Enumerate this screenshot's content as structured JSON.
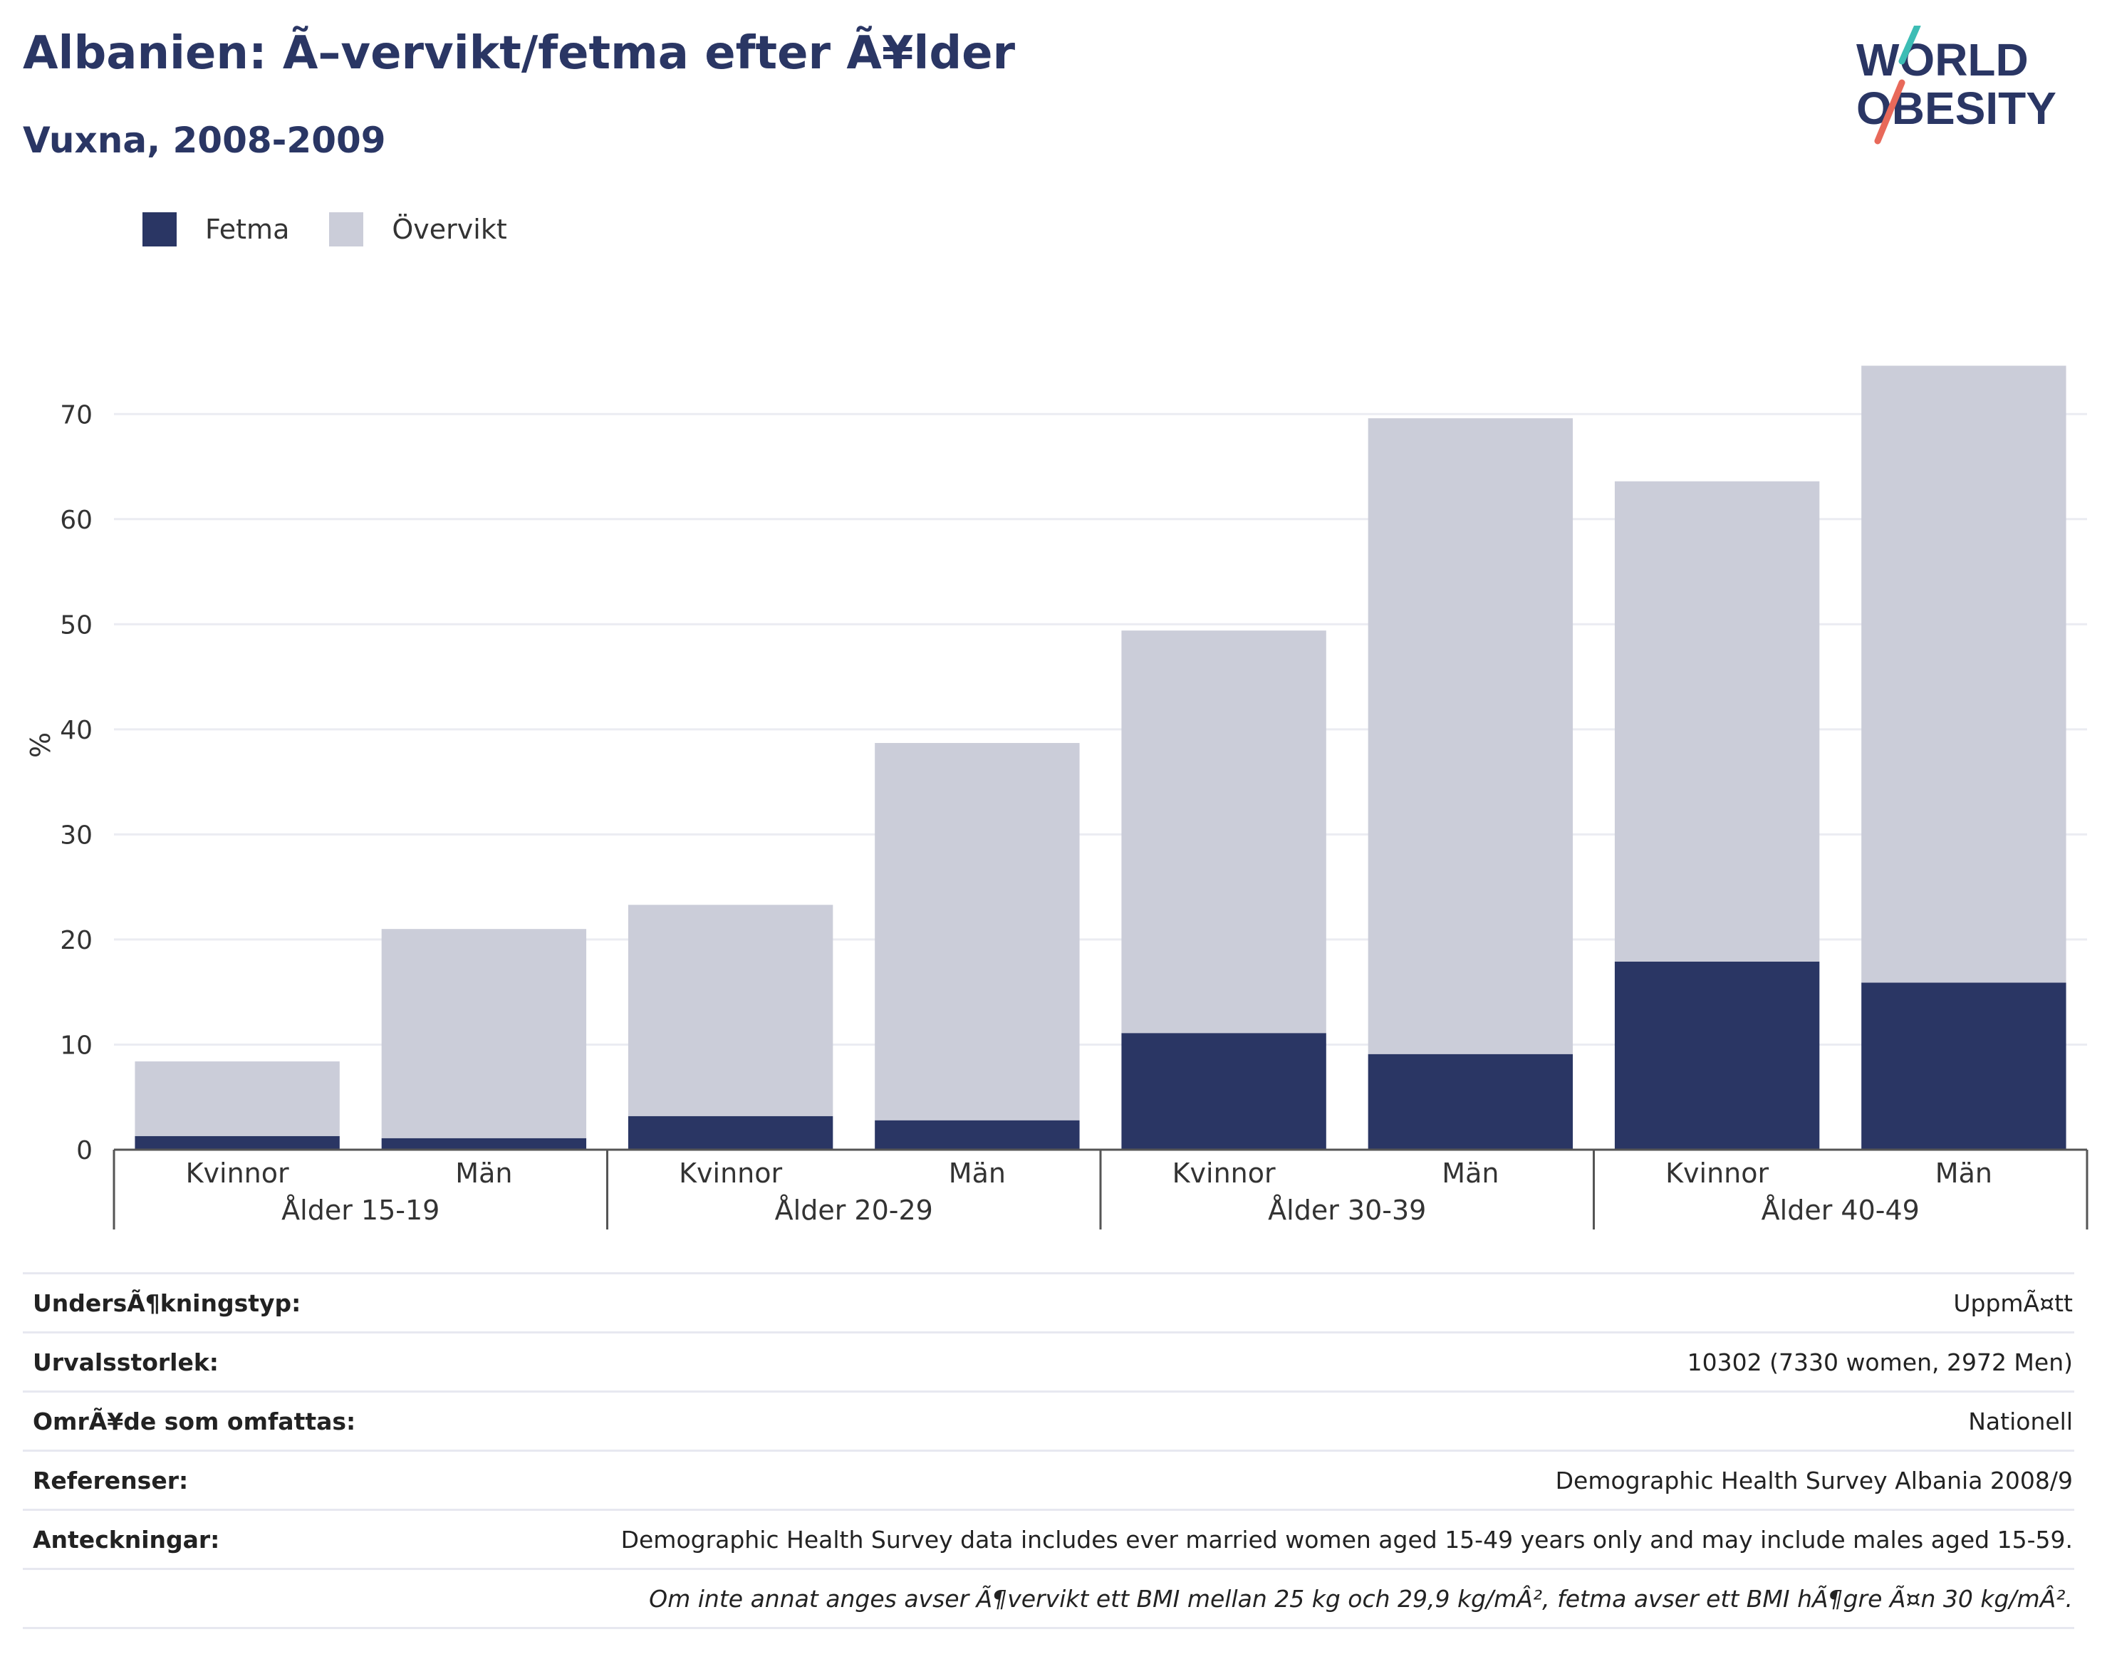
{
  "header": {
    "title": "Albanien: Ã–vervikt/fetma efter Ã¥lder",
    "subtitle": "Vuxna, 2008-2009"
  },
  "logo": {
    "line1": "WORLD",
    "line2": "OBESITY",
    "colors": {
      "text": "#2a3664",
      "slash_top": "#3dbdb5",
      "slash_bottom": "#e8695a"
    }
  },
  "colors": {
    "obesity": "#2a3664",
    "overweight": "#cbcdd9",
    "grid": "#ebecf2",
    "axis": "#555555"
  },
  "chart_data": {
    "type": "bar",
    "stacked": true,
    "ylabel": "%",
    "ylim": [
      0,
      77
    ],
    "yticks": [
      0,
      10,
      20,
      30,
      40,
      50,
      60,
      70
    ],
    "grid": true,
    "legend_position": "top-left",
    "legend": [
      "Fetma",
      "Övervikt"
    ],
    "groups": [
      "Ålder 15-19",
      "Ålder 20-29",
      "Ålder 30-39",
      "Ålder 40-49"
    ],
    "categories": [
      "Kvinnor",
      "Män",
      "Kvinnor",
      "Män",
      "Kvinnor",
      "Män",
      "Kvinnor",
      "Män"
    ],
    "series": [
      {
        "name": "Fetma",
        "values": [
          1.3,
          1.1,
          3.2,
          2.8,
          11.1,
          9.1,
          17.9,
          15.9
        ]
      },
      {
        "name": "Övervikt",
        "values": [
          7.1,
          19.9,
          20.1,
          35.9,
          38.3,
          60.5,
          45.7,
          58.7
        ]
      }
    ]
  },
  "info": [
    {
      "key": "UndersÃ¶kningstyp:",
      "value": "UppmÃ¤tt"
    },
    {
      "key": "Urvalsstorlek:",
      "value": "10302 (7330 women, 2972 Men)"
    },
    {
      "key": "OmrÃ¥de som omfattas:",
      "value": "Nationell"
    },
    {
      "key": "Referenser:",
      "value": "Demographic Health Survey Albania 2008/9"
    },
    {
      "key": "Anteckningar:",
      "value": "Demographic Health Survey data includes ever married women aged 15-49 years only and may include males aged 15-59."
    },
    {
      "key": "",
      "value": "Om inte annat anges avser Ã¶vervikt ett BMI mellan 25 kg och 29,9 kg/mÂ², fetma avser ett BMI hÃ¶gre Ã¤n 30 kg/mÂ²."
    }
  ]
}
